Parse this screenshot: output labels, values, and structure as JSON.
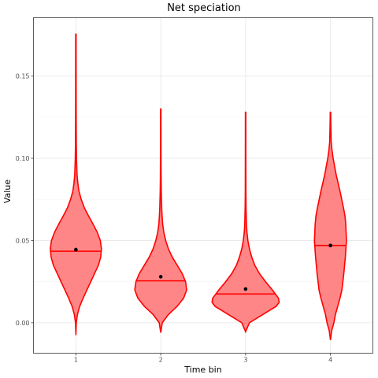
{
  "chart_data": {
    "type": "violin",
    "title": "Net speciation",
    "xlabel": "Time bin",
    "ylabel": "Value",
    "categories": [
      "1",
      "2",
      "3",
      "4"
    ],
    "ylim": [
      -0.0185,
      0.1855
    ],
    "yticks": [
      0.0,
      0.05,
      0.1,
      0.15
    ],
    "ytick_labels": [
      "0.00",
      "0.05",
      "0.10",
      "0.15"
    ],
    "grid": true,
    "fill_color": "#ff7f7f",
    "line_color": "#ff0000",
    "mean_color": "#000000",
    "violins": [
      {
        "category": "1",
        "min": -0.0075,
        "max": 0.1755,
        "median": 0.0435,
        "mean": 0.0445,
        "profile": [
          [
            -0.0075,
            0.0
          ],
          [
            0.0,
            0.01
          ],
          [
            0.005,
            0.04
          ],
          [
            0.01,
            0.1
          ],
          [
            0.015,
            0.19
          ],
          [
            0.02,
            0.29
          ],
          [
            0.025,
            0.39
          ],
          [
            0.03,
            0.49
          ],
          [
            0.035,
            0.59
          ],
          [
            0.04,
            0.65
          ],
          [
            0.045,
            0.67
          ],
          [
            0.05,
            0.64
          ],
          [
            0.055,
            0.56
          ],
          [
            0.06,
            0.45
          ],
          [
            0.065,
            0.33
          ],
          [
            0.07,
            0.22
          ],
          [
            0.075,
            0.14
          ],
          [
            0.08,
            0.08
          ],
          [
            0.085,
            0.05
          ],
          [
            0.09,
            0.03
          ],
          [
            0.1,
            0.016
          ],
          [
            0.11,
            0.01
          ],
          [
            0.13,
            0.007
          ],
          [
            0.15,
            0.006
          ],
          [
            0.1755,
            0.005
          ]
        ]
      },
      {
        "category": "2",
        "min": -0.006,
        "max": 0.13,
        "median": 0.0255,
        "mean": 0.028,
        "profile": [
          [
            -0.006,
            0.0
          ],
          [
            0.0,
            0.04
          ],
          [
            0.005,
            0.2
          ],
          [
            0.01,
            0.43
          ],
          [
            0.015,
            0.6
          ],
          [
            0.02,
            0.68
          ],
          [
            0.025,
            0.65
          ],
          [
            0.03,
            0.56
          ],
          [
            0.035,
            0.43
          ],
          [
            0.04,
            0.3
          ],
          [
            0.045,
            0.2
          ],
          [
            0.05,
            0.13
          ],
          [
            0.055,
            0.08
          ],
          [
            0.06,
            0.05
          ],
          [
            0.065,
            0.035
          ],
          [
            0.07,
            0.025
          ],
          [
            0.08,
            0.014
          ],
          [
            0.09,
            0.009
          ],
          [
            0.1,
            0.007
          ],
          [
            0.11,
            0.006
          ],
          [
            0.13,
            0.005
          ]
        ]
      },
      {
        "category": "3",
        "min": -0.0055,
        "max": 0.128,
        "median": 0.0175,
        "mean": 0.0205,
        "profile": [
          [
            -0.0055,
            0.0
          ],
          [
            0.0,
            0.1
          ],
          [
            0.005,
            0.45
          ],
          [
            0.01,
            0.8
          ],
          [
            0.0125,
            0.88
          ],
          [
            0.015,
            0.86
          ],
          [
            0.02,
            0.7
          ],
          [
            0.025,
            0.52
          ],
          [
            0.03,
            0.36
          ],
          [
            0.035,
            0.24
          ],
          [
            0.04,
            0.16
          ],
          [
            0.045,
            0.1
          ],
          [
            0.05,
            0.06
          ],
          [
            0.055,
            0.035
          ],
          [
            0.06,
            0.022
          ],
          [
            0.07,
            0.012
          ],
          [
            0.08,
            0.008
          ],
          [
            0.1,
            0.006
          ],
          [
            0.128,
            0.005
          ]
        ]
      },
      {
        "category": "4",
        "min": -0.0105,
        "max": 0.128,
        "median": 0.047,
        "mean": 0.047,
        "profile": [
          [
            -0.0105,
            0.0
          ],
          [
            -0.005,
            0.03
          ],
          [
            0.0,
            0.09
          ],
          [
            0.005,
            0.13
          ],
          [
            0.01,
            0.19
          ],
          [
            0.015,
            0.25
          ],
          [
            0.02,
            0.3
          ],
          [
            0.03,
            0.35
          ],
          [
            0.04,
            0.39
          ],
          [
            0.05,
            0.42
          ],
          [
            0.06,
            0.4
          ],
          [
            0.065,
            0.38
          ],
          [
            0.07,
            0.34
          ],
          [
            0.08,
            0.25
          ],
          [
            0.09,
            0.15
          ],
          [
            0.1,
            0.07
          ],
          [
            0.105,
            0.04
          ],
          [
            0.11,
            0.02
          ],
          [
            0.12,
            0.01
          ],
          [
            0.128,
            0.005
          ]
        ]
      }
    ]
  }
}
